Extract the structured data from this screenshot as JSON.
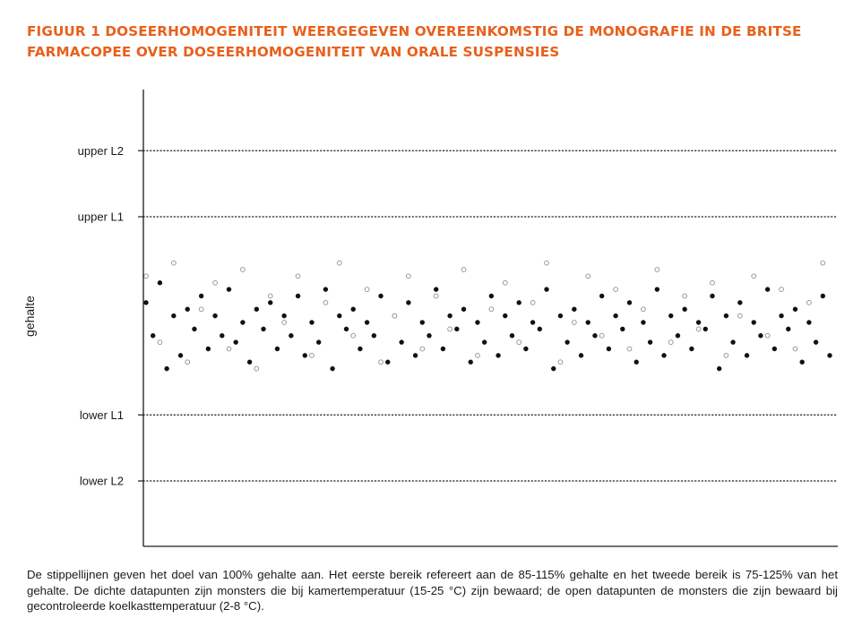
{
  "title": "FIGUUR 1  DOSEERHOMOGENITEIT WEERGEGEVEN OVEREENKOMSTIG DE MONOGRAFIE IN DE BRITSE FARMACOPEE OVER DOSEERHOMOGENITEIT VAN ORALE SUSPENSIES",
  "caption": "De stippellijnen geven het doel van 100% gehalte aan. Het eerste bereik refereert aan de 85-115% gehalte en het tweede bereik is 75-125% van het gehalte. De dichte datapunten zijn monsters die bij kamertemperatuur (15-25 °C) zijn bewaard; de open datapunten de monsters die zijn bewaard bij gecontroleerde koelkasttemperatuur (2-8 °C).",
  "colors": {
    "title": "#e8601c",
    "text": "#1a1a1a",
    "filled_marker": "#111111",
    "open_marker": "#8c8c8c"
  },
  "chart_data": {
    "type": "scatter",
    "ylabel": "gehalte",
    "xlabel": "",
    "ylim": [
      60,
      135
    ],
    "grid": false,
    "y_ticks": [
      {
        "label": "upper L2",
        "value": 125
      },
      {
        "label": "upper L1",
        "value": 115
      },
      {
        "label": "lower L1",
        "value": 85
      },
      {
        "label": "lower L2",
        "value": 75
      }
    ],
    "reference_lines": [
      {
        "label": "upper L2",
        "value": 125,
        "style": "dotted"
      },
      {
        "label": "upper L1",
        "value": 115,
        "style": "dotted"
      },
      {
        "label": "lower L1",
        "value": 85,
        "style": "dotted"
      },
      {
        "label": "lower L2",
        "value": 75,
        "style": "dotted"
      }
    ],
    "series": [
      {
        "marker": "filled",
        "points": [
          [
            1,
            102
          ],
          [
            2,
            97
          ],
          [
            3,
            105
          ],
          [
            4,
            92
          ],
          [
            5,
            100
          ],
          [
            6,
            94
          ],
          [
            7,
            101
          ],
          [
            8,
            98
          ],
          [
            9,
            103
          ],
          [
            10,
            95
          ],
          [
            11,
            100
          ],
          [
            12,
            97
          ],
          [
            13,
            104
          ],
          [
            14,
            96
          ],
          [
            15,
            99
          ],
          [
            16,
            93
          ],
          [
            17,
            101
          ],
          [
            18,
            98
          ],
          [
            19,
            102
          ],
          [
            20,
            95
          ],
          [
            21,
            100
          ],
          [
            22,
            97
          ],
          [
            23,
            103
          ],
          [
            24,
            94
          ],
          [
            25,
            99
          ],
          [
            26,
            96
          ],
          [
            27,
            104
          ],
          [
            28,
            92
          ],
          [
            29,
            100
          ],
          [
            30,
            98
          ],
          [
            31,
            101
          ],
          [
            32,
            95
          ],
          [
            33,
            99
          ],
          [
            34,
            97
          ],
          [
            35,
            103
          ],
          [
            36,
            93
          ],
          [
            37,
            100
          ],
          [
            38,
            96
          ],
          [
            39,
            102
          ],
          [
            40,
            94
          ],
          [
            41,
            99
          ],
          [
            42,
            97
          ],
          [
            43,
            104
          ],
          [
            44,
            95
          ],
          [
            45,
            100
          ],
          [
            46,
            98
          ],
          [
            47,
            101
          ],
          [
            48,
            93
          ],
          [
            49,
            99
          ],
          [
            50,
            96
          ],
          [
            51,
            103
          ],
          [
            52,
            94
          ],
          [
            53,
            100
          ],
          [
            54,
            97
          ],
          [
            55,
            102
          ],
          [
            56,
            95
          ],
          [
            57,
            99
          ],
          [
            58,
            98
          ],
          [
            59,
            104
          ],
          [
            60,
            92
          ],
          [
            61,
            100
          ],
          [
            62,
            96
          ],
          [
            63,
            101
          ],
          [
            64,
            94
          ],
          [
            65,
            99
          ],
          [
            66,
            97
          ],
          [
            67,
            103
          ],
          [
            68,
            95
          ],
          [
            69,
            100
          ],
          [
            70,
            98
          ],
          [
            71,
            102
          ],
          [
            72,
            93
          ],
          [
            73,
            99
          ],
          [
            74,
            96
          ],
          [
            75,
            104
          ],
          [
            76,
            94
          ],
          [
            77,
            100
          ],
          [
            78,
            97
          ],
          [
            79,
            101
          ],
          [
            80,
            95
          ],
          [
            81,
            99
          ],
          [
            82,
            98
          ],
          [
            83,
            103
          ],
          [
            84,
            92
          ],
          [
            85,
            100
          ],
          [
            86,
            96
          ],
          [
            87,
            102
          ],
          [
            88,
            94
          ],
          [
            89,
            99
          ],
          [
            90,
            97
          ],
          [
            91,
            104
          ],
          [
            92,
            95
          ],
          [
            93,
            100
          ],
          [
            94,
            98
          ],
          [
            95,
            101
          ],
          [
            96,
            93
          ],
          [
            97,
            99
          ],
          [
            98,
            96
          ],
          [
            99,
            103
          ],
          [
            100,
            94
          ]
        ]
      },
      {
        "marker": "open",
        "points": [
          [
            1,
            106
          ],
          [
            3,
            96
          ],
          [
            5,
            108
          ],
          [
            7,
            93
          ],
          [
            9,
            101
          ],
          [
            11,
            105
          ],
          [
            13,
            95
          ],
          [
            15,
            107
          ],
          [
            17,
            92
          ],
          [
            19,
            103
          ],
          [
            21,
            99
          ],
          [
            23,
            106
          ],
          [
            25,
            94
          ],
          [
            27,
            102
          ],
          [
            29,
            108
          ],
          [
            31,
            97
          ],
          [
            33,
            104
          ],
          [
            35,
            93
          ],
          [
            37,
            100
          ],
          [
            39,
            106
          ],
          [
            41,
            95
          ],
          [
            43,
            103
          ],
          [
            45,
            98
          ],
          [
            47,
            107
          ],
          [
            49,
            94
          ],
          [
            51,
            101
          ],
          [
            53,
            105
          ],
          [
            55,
            96
          ],
          [
            57,
            102
          ],
          [
            59,
            108
          ],
          [
            61,
            93
          ],
          [
            63,
            99
          ],
          [
            65,
            106
          ],
          [
            67,
            97
          ],
          [
            69,
            104
          ],
          [
            71,
            95
          ],
          [
            73,
            101
          ],
          [
            75,
            107
          ],
          [
            77,
            96
          ],
          [
            79,
            103
          ],
          [
            81,
            98
          ],
          [
            83,
            105
          ],
          [
            85,
            94
          ],
          [
            87,
            100
          ],
          [
            89,
            106
          ],
          [
            91,
            97
          ],
          [
            93,
            104
          ],
          [
            95,
            95
          ],
          [
            97,
            102
          ],
          [
            99,
            108
          ]
        ]
      }
    ]
  }
}
